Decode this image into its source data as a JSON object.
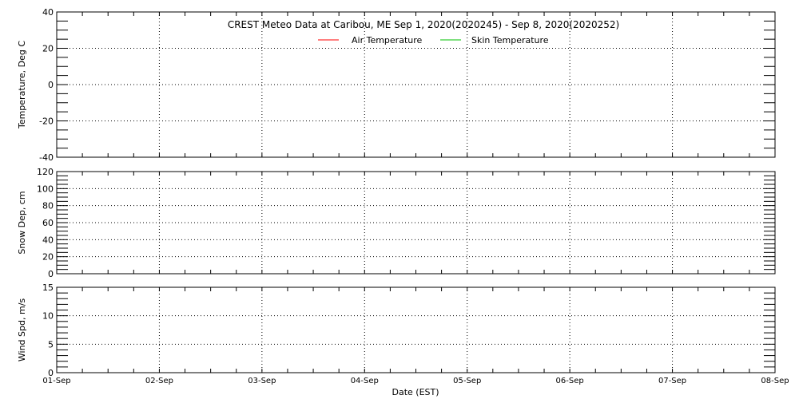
{
  "chart_data": [
    {
      "type": "line",
      "title": "CREST Meteo Data at Caribou, ME   Sep  1, 2020(2020245) - Sep  8, 2020(2020252)",
      "ylabel": "Temperature, Deg C",
      "ylim": [
        -40,
        40
      ],
      "yticks": [
        -40,
        -20,
        0,
        20,
        40
      ],
      "yminor": 5,
      "grid": true,
      "legend_placement": "top-center",
      "series": [
        {
          "name": "Air Temperature",
          "color": "#ff0000",
          "values": []
        },
        {
          "name": "Skin Temperature",
          "color": "#00c000",
          "values": []
        }
      ]
    },
    {
      "type": "line",
      "ylabel": "Snow Dep, cm",
      "ylim": [
        0,
        120
      ],
      "yticks": [
        0,
        20,
        40,
        60,
        80,
        100,
        120
      ],
      "yminor": 5,
      "grid": true,
      "series": [
        {
          "values": []
        }
      ]
    },
    {
      "type": "line",
      "ylabel": "Wind Spd, m/s",
      "ylim": [
        0,
        15
      ],
      "yticks": [
        0,
        5,
        10,
        15
      ],
      "yminor": 1,
      "grid": true,
      "series": [
        {
          "values": []
        }
      ]
    }
  ],
  "xaxis": {
    "label": "Date (EST)",
    "ticks": [
      "01-Sep",
      "02-Sep",
      "03-Sep",
      "04-Sep",
      "05-Sep",
      "06-Sep",
      "07-Sep",
      "08-Sep"
    ],
    "minor_per_day": 4
  }
}
